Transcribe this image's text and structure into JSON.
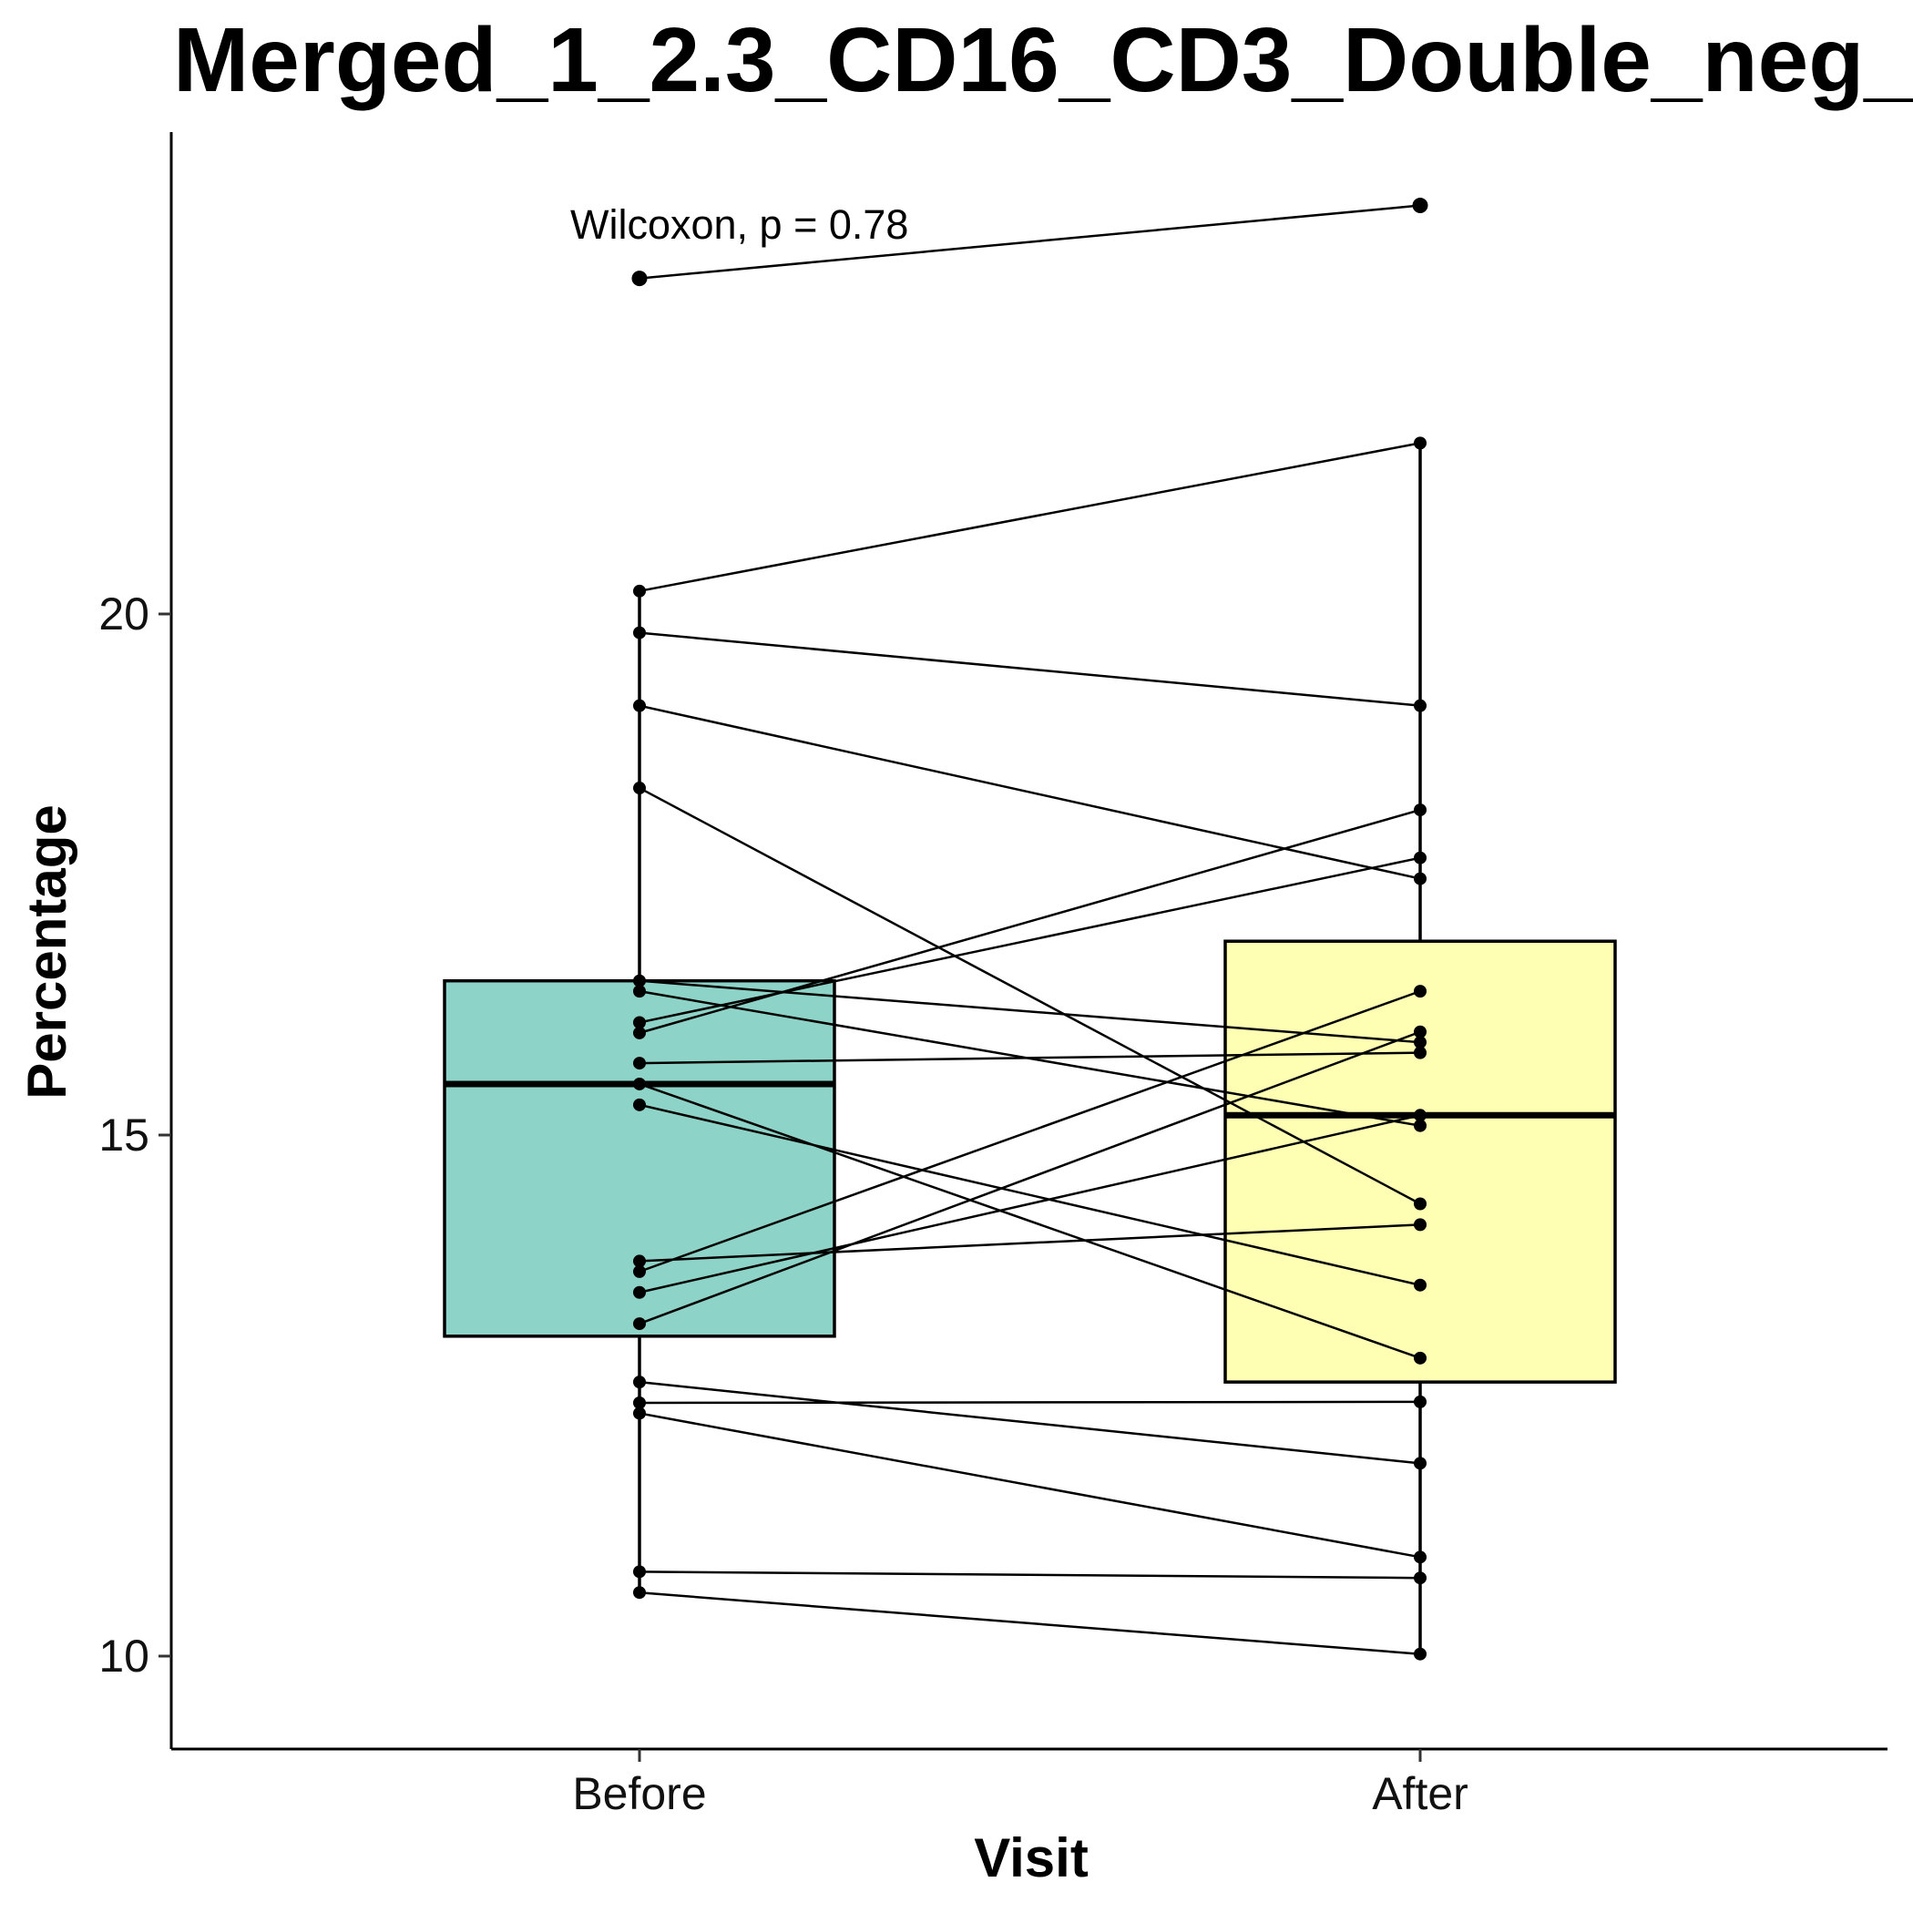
{
  "chart_data": {
    "type": "boxplot",
    "title": "Merged_1_2.3_CD16_CD3_Double_neg_",
    "xlabel": "Visit",
    "ylabel": "Percentage",
    "categories": [
      "Before",
      "After"
    ],
    "yticks": [
      10,
      15,
      20
    ],
    "ylim": [
      9.1,
      24.6
    ],
    "annotation": "Wilcoxon, p = 0.78",
    "colors": {
      "Before": "#8dd3c7",
      "After": "#ffffb3",
      "line": "#000000"
    },
    "boxes": [
      {
        "group": "Before",
        "q1": 13.07,
        "median": 15.49,
        "q3": 16.48,
        "whisker_low": 10.61,
        "whisker_high": 20.22
      },
      {
        "group": "After",
        "q1": 12.63,
        "median": 15.19,
        "q3": 16.86,
        "whisker_low": 10.02,
        "whisker_high": 21.64
      }
    ],
    "pairs": [
      [
        23.22,
        23.92
      ],
      [
        20.22,
        21.64
      ],
      [
        19.82,
        19.12
      ],
      [
        19.12,
        17.46
      ],
      [
        18.33,
        14.34
      ],
      [
        16.48,
        15.89
      ],
      [
        16.38,
        15.09
      ],
      [
        16.08,
        17.66
      ],
      [
        15.98,
        18.12
      ],
      [
        15.69,
        15.79
      ],
      [
        15.49,
        12.86
      ],
      [
        15.29,
        13.56
      ],
      [
        13.79,
        14.14
      ],
      [
        13.69,
        16.38
      ],
      [
        13.49,
        15.19
      ],
      [
        13.19,
        15.99
      ],
      [
        12.63,
        11.85
      ],
      [
        12.43,
        12.44
      ],
      [
        12.33,
        10.95
      ],
      [
        10.81,
        10.75
      ],
      [
        10.61,
        10.02
      ]
    ]
  }
}
